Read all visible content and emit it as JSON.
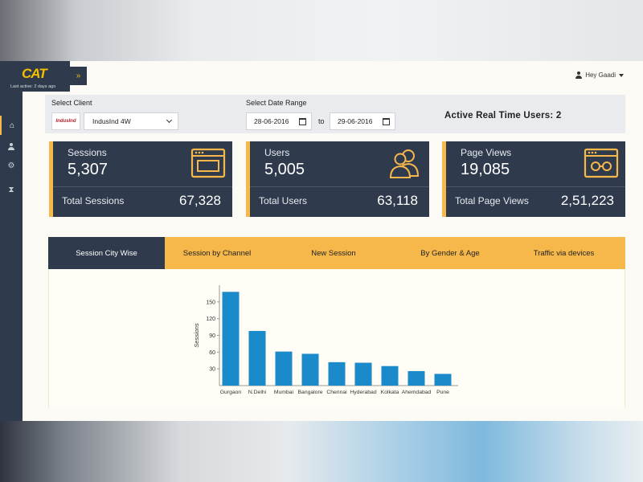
{
  "sidebar": {
    "logo": "CAT",
    "last_active": "Last active: 2 days ago",
    "expand_icon": "»",
    "items": [
      {
        "icon": "home-icon",
        "glyph": "⌂"
      },
      {
        "icon": "user-icon",
        "glyph": "●"
      },
      {
        "icon": "settings-icon",
        "glyph": "⚙"
      },
      {
        "icon": "hourglass-icon",
        "glyph": "⧗"
      }
    ]
  },
  "header": {
    "user_label": "Hey Gaadi"
  },
  "filters": {
    "client_label": "Select Client",
    "client_logo": "IndusInd",
    "client_value": "IndusInd 4W",
    "date_label": "Select Date Range",
    "date_from": "28-06-2016",
    "to_label": "to",
    "date_to": "29-06-2016",
    "realtime_label": "Active Real Time Users:",
    "realtime_value": "2"
  },
  "cards": [
    {
      "label": "Sessions",
      "value": "5,307",
      "total_label": "Total Sessions",
      "total_value": "67,328",
      "icon": "browser-window-icon"
    },
    {
      "label": "Users",
      "value": "5,005",
      "total_label": "Total Users",
      "total_value": "63,118",
      "icon": "users-icon"
    },
    {
      "label": "Page Views",
      "value": "19,085",
      "total_label": "Total Page Views",
      "total_value": "2,51,223",
      "icon": "glasses-window-icon"
    }
  ],
  "tabs": [
    {
      "label": "Session City Wise",
      "active": true
    },
    {
      "label": "Session by Channel",
      "active": false
    },
    {
      "label": "New Session",
      "active": false
    },
    {
      "label": "By Gender & Age",
      "active": false
    },
    {
      "label": "Traffic via  devices",
      "active": false
    }
  ],
  "colors": {
    "navy": "#2f3a4c",
    "accent": "#f7b84b",
    "bar": "#1a8acb"
  },
  "chart_data": {
    "type": "bar",
    "categories": [
      "Gurgaon",
      "N.Delhi",
      "Mumbai",
      "Bangalore",
      "Chennai",
      "Hyderabad",
      "Kolkata",
      "Ahemdabad",
      "Pune"
    ],
    "values": [
      168,
      98,
      61,
      57,
      42,
      41,
      35,
      26,
      21
    ],
    "ylabel": "Sessions",
    "yticks": [
      30,
      60,
      90,
      120,
      150
    ],
    "ylim": [
      0,
      180
    ],
    "grid": false,
    "legend": "none"
  }
}
